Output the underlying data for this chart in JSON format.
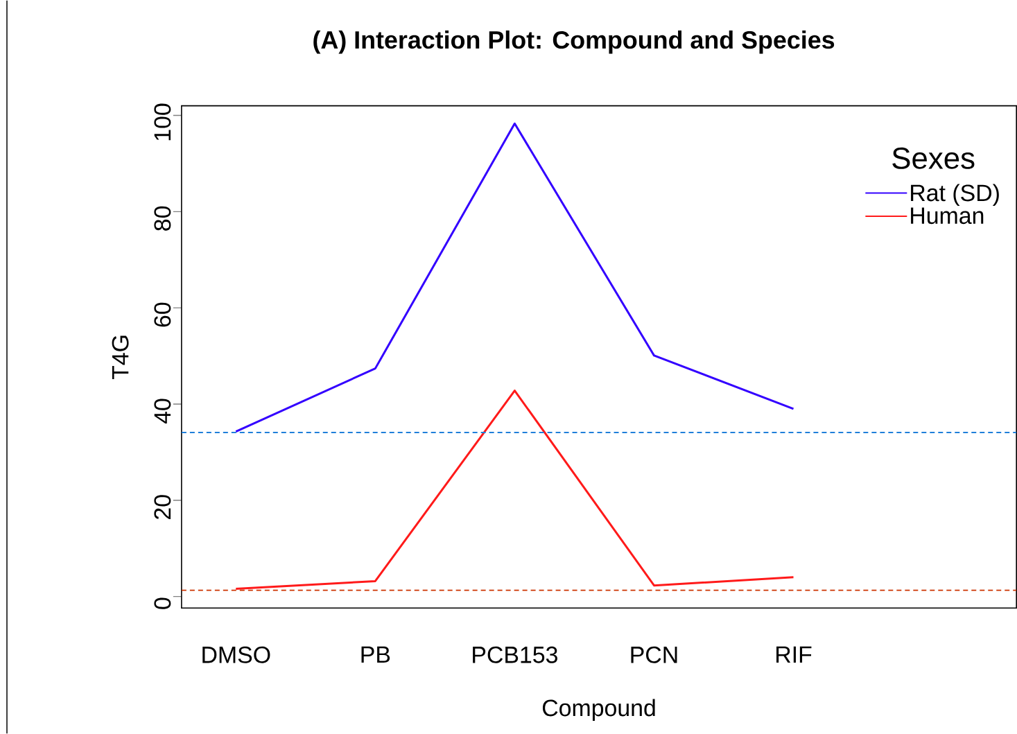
{
  "chart_data": {
    "type": "line",
    "title": "(A)   Interaction Plot: Compound and Species",
    "xlabel": "Compound",
    "ylabel": "T4G",
    "legend_title": "Sexes",
    "categories": [
      "DMSO",
      "PB",
      "PCB153",
      "PCN",
      "RIF"
    ],
    "series": [
      {
        "name": "Rat (SD)",
        "color": "#3300ff",
        "values": [
          34.3,
          47.4,
          98.3,
          50.1,
          39.0
        ]
      },
      {
        "name": "Human",
        "color": "#ff1a1a",
        "values": [
          1.6,
          3.2,
          42.8,
          2.3,
          4.0
        ]
      }
    ],
    "ylim": [
      -2.4,
      102
    ],
    "yticks": [
      0,
      20,
      40,
      60,
      80,
      100
    ],
    "ref_lines": [
      {
        "axis": "y",
        "value": 34.1,
        "color": "#1f7fd9",
        "line_style": "dashed"
      },
      {
        "axis": "y",
        "value": 1.3,
        "color": "#cc3300",
        "line_style": "dashed"
      }
    ],
    "legend": "top right",
    "grid": false,
    "marker": "none",
    "line_style": "solid"
  }
}
